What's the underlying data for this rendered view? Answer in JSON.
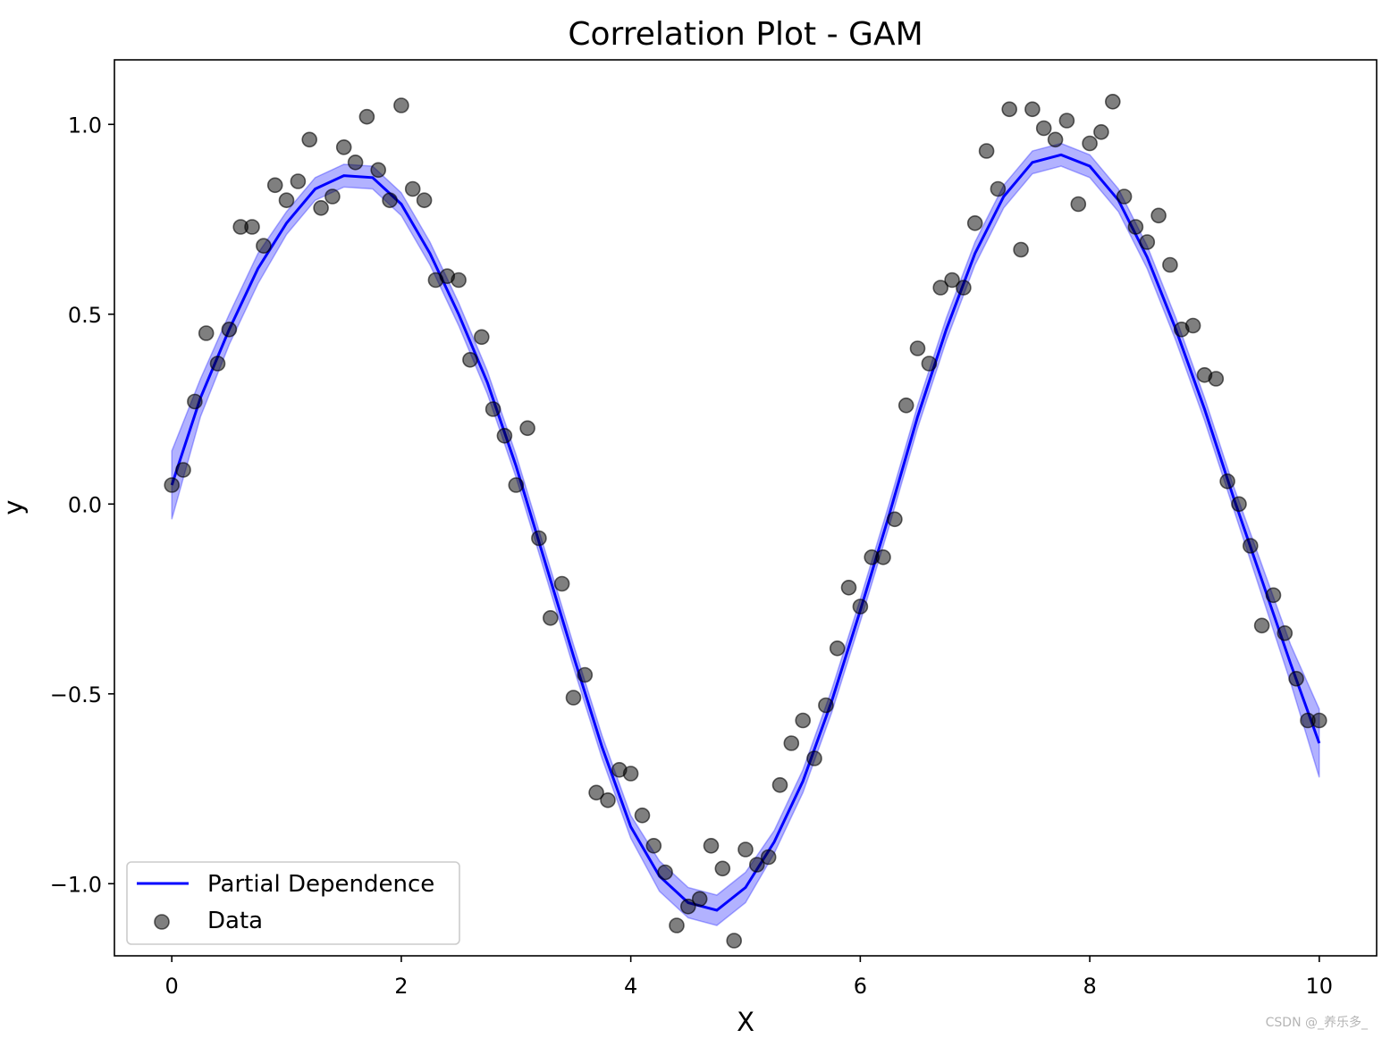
{
  "watermark": "CSDN @_养乐多_",
  "chart_data": {
    "type": "line",
    "title": "Correlation Plot - GAM",
    "xlabel": "X",
    "ylabel": "y",
    "xlim": [
      -0.5,
      10.5
    ],
    "ylim": [
      -1.19,
      1.17
    ],
    "x_ticks": [
      0,
      2,
      4,
      6,
      8,
      10
    ],
    "x_tick_labels": [
      "0",
      "2",
      "4",
      "6",
      "8",
      "10"
    ],
    "y_ticks": [
      1.0,
      0.5,
      0.0,
      -0.5,
      -1.0
    ],
    "y_tick_labels": [
      "1.0",
      "0.5",
      "0.0",
      "−0.5",
      "−1.0"
    ],
    "grid": false,
    "legend_position": "lower-left",
    "colors": {
      "line": "#0000ff",
      "band": "#0000ff",
      "points": "#000000"
    },
    "series": [
      {
        "name": "Partial Dependence",
        "kind": "line",
        "x": [
          0,
          0.25,
          0.5,
          0.75,
          1,
          1.25,
          1.5,
          1.75,
          2,
          2.25,
          2.5,
          2.75,
          3,
          3.25,
          3.5,
          3.75,
          4,
          4.25,
          4.5,
          4.75,
          5,
          5.25,
          5.5,
          5.75,
          6,
          6.25,
          6.5,
          6.75,
          7,
          7.25,
          7.5,
          7.75,
          8,
          8.25,
          8.5,
          8.75,
          9,
          9.25,
          9.5,
          9.75,
          10
        ],
        "y": [
          0.05,
          0.28,
          0.46,
          0.62,
          0.74,
          0.83,
          0.865,
          0.86,
          0.79,
          0.66,
          0.5,
          0.32,
          0.1,
          -0.15,
          -0.4,
          -0.64,
          -0.85,
          -0.98,
          -1.05,
          -1.07,
          -1.01,
          -0.89,
          -0.73,
          -0.52,
          -0.28,
          -0.03,
          0.23,
          0.46,
          0.66,
          0.81,
          0.9,
          0.92,
          0.89,
          0.8,
          0.65,
          0.46,
          0.25,
          0.02,
          -0.2,
          -0.42,
          -0.63
        ],
        "ci_lower": [
          -0.04,
          0.23,
          0.42,
          0.58,
          0.71,
          0.8,
          0.835,
          0.83,
          0.76,
          0.63,
          0.47,
          0.29,
          0.07,
          -0.18,
          -0.43,
          -0.67,
          -0.88,
          -1.02,
          -1.09,
          -1.11,
          -1.05,
          -0.92,
          -0.76,
          -0.55,
          -0.31,
          -0.06,
          0.2,
          0.43,
          0.63,
          0.78,
          0.87,
          0.89,
          0.86,
          0.77,
          0.62,
          0.43,
          0.22,
          -0.01,
          -0.24,
          -0.47,
          -0.72
        ],
        "ci_upper": [
          0.14,
          0.33,
          0.5,
          0.66,
          0.77,
          0.86,
          0.895,
          0.89,
          0.82,
          0.69,
          0.53,
          0.35,
          0.13,
          -0.12,
          -0.37,
          -0.61,
          -0.82,
          -0.94,
          -1.01,
          -1.03,
          -0.97,
          -0.86,
          -0.7,
          -0.49,
          -0.25,
          0.0,
          0.26,
          0.49,
          0.69,
          0.84,
          0.93,
          0.95,
          0.92,
          0.83,
          0.68,
          0.49,
          0.28,
          0.05,
          -0.16,
          -0.37,
          -0.54
        ]
      },
      {
        "name": "Data",
        "kind": "scatter",
        "x": [
          0.0,
          0.1,
          0.2,
          0.3,
          0.4,
          0.5,
          0.6,
          0.7,
          0.8,
          0.9,
          1.0,
          1.1,
          1.2,
          1.3,
          1.4,
          1.5,
          1.6,
          1.7,
          1.8,
          1.9,
          2.0,
          2.1,
          2.2,
          2.3,
          2.4,
          2.5,
          2.6,
          2.7,
          2.8,
          2.9,
          3.0,
          3.1,
          3.2,
          3.3,
          3.4,
          3.5,
          3.6,
          3.7,
          3.8,
          3.9,
          4.0,
          4.1,
          4.2,
          4.3,
          4.4,
          4.5,
          4.6,
          4.7,
          4.8,
          4.9,
          5.0,
          5.1,
          5.2,
          5.3,
          5.4,
          5.5,
          5.6,
          5.7,
          5.8,
          5.9,
          6.0,
          6.1,
          6.2,
          6.3,
          6.4,
          6.5,
          6.6,
          6.7,
          6.8,
          6.9,
          7.0,
          7.1,
          7.2,
          7.3,
          7.4,
          7.5,
          7.6,
          7.7,
          7.8,
          7.9,
          8.0,
          8.1,
          8.2,
          8.3,
          8.4,
          8.5,
          8.6,
          8.7,
          8.8,
          8.9,
          9.0,
          9.1,
          9.2,
          9.3,
          9.4,
          9.5,
          9.6,
          9.7,
          9.8,
          9.9,
          10.0
        ],
        "y": [
          0.05,
          0.09,
          0.27,
          0.45,
          0.37,
          0.46,
          0.73,
          0.73,
          0.68,
          0.84,
          0.8,
          0.85,
          0.96,
          0.78,
          0.81,
          0.94,
          0.9,
          1.02,
          0.88,
          0.8,
          1.05,
          0.83,
          0.8,
          0.59,
          0.6,
          0.59,
          0.38,
          0.44,
          0.25,
          0.18,
          0.05,
          0.2,
          -0.09,
          -0.3,
          -0.21,
          -0.51,
          -0.45,
          -0.76,
          -0.78,
          -0.7,
          -0.71,
          -0.82,
          -0.9,
          -0.97,
          -1.11,
          -1.06,
          -1.04,
          -0.9,
          -0.96,
          -1.15,
          -0.91,
          -0.95,
          -0.93,
          -0.74,
          -0.63,
          -0.57,
          -0.67,
          -0.53,
          -0.38,
          -0.22,
          -0.27,
          -0.14,
          -0.14,
          -0.04,
          0.26,
          0.41,
          0.37,
          0.57,
          0.59,
          0.57,
          0.74,
          0.93,
          0.83,
          1.04,
          0.67,
          1.04,
          0.99,
          0.96,
          1.01,
          0.79,
          0.95,
          0.98,
          1.06,
          0.81,
          0.73,
          0.69,
          0.76,
          0.63,
          0.46,
          0.47,
          0.34,
          0.33,
          0.06,
          -0.0,
          -0.11,
          -0.32,
          -0.24,
          -0.34,
          -0.46,
          -0.57,
          -0.57
        ]
      }
    ]
  }
}
